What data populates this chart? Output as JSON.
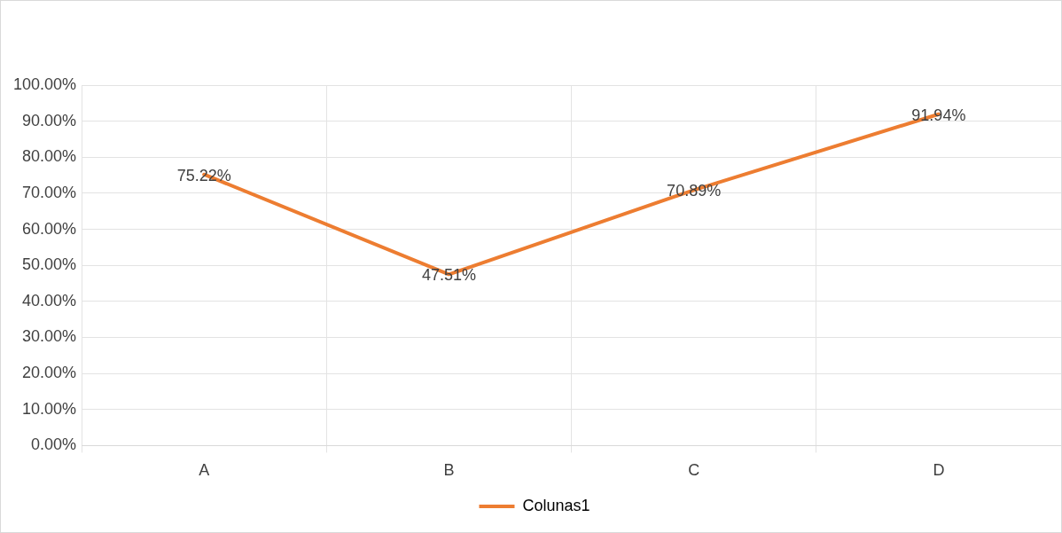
{
  "chart_data": {
    "type": "line",
    "categories": [
      "A",
      "B",
      "C",
      "D"
    ],
    "series": [
      {
        "name": "Colunas1",
        "color": "#ed7d31",
        "values": [
          75.22,
          47.51,
          70.89,
          91.94
        ],
        "value_labels": [
          "75.22%",
          "47.51%",
          "70.89%",
          "91.94%"
        ]
      }
    ],
    "ylim": [
      0,
      100
    ],
    "yticks": [
      {
        "value": 0,
        "label": "0.00%"
      },
      {
        "value": 10,
        "label": "10.00%"
      },
      {
        "value": 20,
        "label": "20.00%"
      },
      {
        "value": 30,
        "label": "30.00%"
      },
      {
        "value": 40,
        "label": "40.00%"
      },
      {
        "value": 50,
        "label": "50.00%"
      },
      {
        "value": 60,
        "label": "60.00%"
      },
      {
        "value": 70,
        "label": "70.00%"
      },
      {
        "value": 80,
        "label": "80.00%"
      },
      {
        "value": 90,
        "label": "90.00%"
      },
      {
        "value": 100,
        "label": "100.00%"
      }
    ],
    "grid": true,
    "legend": "bottom",
    "marker": "none",
    "line_style": "solid"
  }
}
